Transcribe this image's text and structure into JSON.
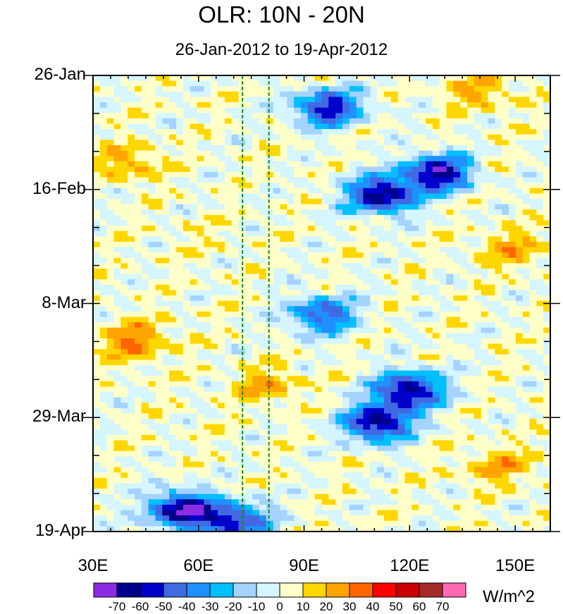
{
  "chart_data": {
    "type": "heatmap",
    "title": "OLR: 10N - 20N",
    "subtitle": "26-Jan-2012 to 19-Apr-2012",
    "xlabel": "",
    "ylabel": "",
    "x_range": [
      30,
      160
    ],
    "x_ticks": [
      30,
      60,
      90,
      120,
      150
    ],
    "x_tick_labels": [
      "30E",
      "60E",
      "90E",
      "120E",
      "150E"
    ],
    "y_ticks_days": [
      0,
      21,
      42,
      63,
      84
    ],
    "y_tick_labels": [
      "26-Jan",
      "16-Feb",
      "8-Mar",
      "29-Mar",
      "19-Apr"
    ],
    "y_range_days": [
      0,
      84
    ],
    "reference_lines_lon": [
      72.5,
      80
    ],
    "colorbar": {
      "levels": [
        -70,
        -60,
        -50,
        -40,
        -30,
        -20,
        -10,
        0,
        10,
        20,
        30,
        40,
        50,
        60,
        70
      ],
      "colors": [
        "#8b2be2",
        "#00008b",
        "#0000cd",
        "#4169e1",
        "#1e90ff",
        "#00bfff",
        "#a4d3ff",
        "#d5f5ff",
        "#ffffc8",
        "#ffd700",
        "#ffa500",
        "#ff6600",
        "#ff0000",
        "#cc0000",
        "#a52a2a",
        "#ff69b4"
      ],
      "units": "W/m^2"
    },
    "features": [
      {
        "lon": 97,
        "day": 6,
        "value": -60
      },
      {
        "lon": 128,
        "day": 18,
        "value": -70
      },
      {
        "lon": 112,
        "day": 22,
        "value": -70
      },
      {
        "lon": 95,
        "day": 44,
        "value": -50
      },
      {
        "lon": 120,
        "day": 58,
        "value": -70
      },
      {
        "lon": 111,
        "day": 64,
        "value": -70
      },
      {
        "lon": 55,
        "day": 80,
        "value": -70
      },
      {
        "lon": 70,
        "day": 82,
        "value": -60
      },
      {
        "lon": 140,
        "day": 3,
        "value": 20
      },
      {
        "lon": 40,
        "day": 16,
        "value": 20
      },
      {
        "lon": 42,
        "day": 49,
        "value": 30
      },
      {
        "lon": 80,
        "day": 57,
        "value": 20
      },
      {
        "lon": 150,
        "day": 32,
        "value": 20
      },
      {
        "lon": 145,
        "day": 72,
        "value": 20
      },
      {
        "lon": 60,
        "day": 30,
        "value": 5
      }
    ]
  }
}
